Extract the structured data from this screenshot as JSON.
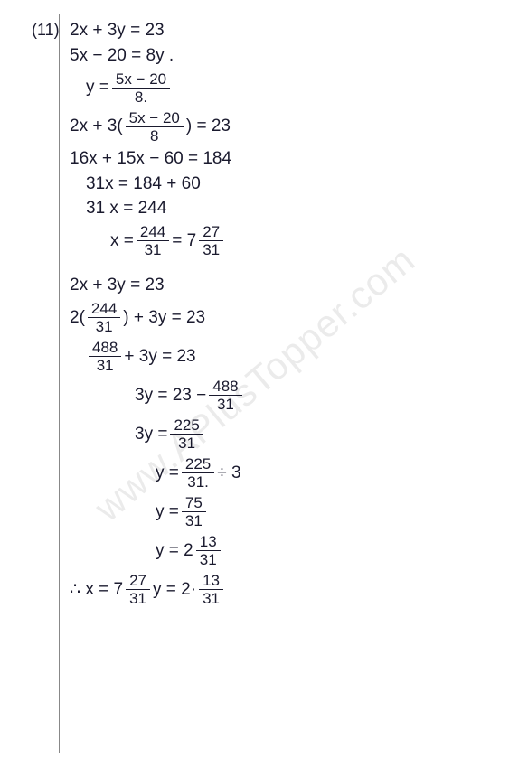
{
  "problem_number": "(11)",
  "watermark": "www.APlusTopper.com",
  "lines": [
    {
      "cls": "",
      "parts": [
        {
          "t": "text",
          "v": "2x + 3y = 23"
        }
      ]
    },
    {
      "cls": "",
      "parts": [
        {
          "t": "text",
          "v": "5x − 20 = 8y ."
        }
      ]
    },
    {
      "cls": "indent1",
      "parts": [
        {
          "t": "text",
          "v": "y = "
        },
        {
          "t": "frac",
          "n": "5x − 20",
          "d": "8."
        }
      ]
    },
    {
      "cls": "",
      "parts": [
        {
          "t": "text",
          "v": "2x + 3"
        },
        {
          "t": "text",
          "v": "("
        },
        {
          "t": "frac",
          "n": "5x − 20",
          "d": "8"
        },
        {
          "t": "text",
          "v": ") = 23"
        }
      ]
    },
    {
      "cls": "",
      "parts": [
        {
          "t": "text",
          "v": "16x + 15x − 60 = 184"
        }
      ]
    },
    {
      "cls": "indent1",
      "parts": [
        {
          "t": "text",
          "v": "31x  =  184 + 60"
        }
      ]
    },
    {
      "cls": "indent1",
      "parts": [
        {
          "t": "text",
          "v": "31 x  =   244"
        }
      ]
    },
    {
      "cls": "indent2",
      "parts": [
        {
          "t": "text",
          "v": "x = "
        },
        {
          "t": "frac",
          "n": "244",
          "d": "31"
        },
        {
          "t": "text",
          "v": "   =  7 "
        },
        {
          "t": "frac",
          "n": "27",
          "d": "31"
        }
      ]
    },
    {
      "cls": "gap",
      "parts": []
    },
    {
      "cls": "",
      "parts": [
        {
          "t": "text",
          "v": "2x + 3y = 23"
        }
      ]
    },
    {
      "cls": "",
      "parts": [
        {
          "t": "text",
          "v": "2("
        },
        {
          "t": "frac",
          "n": "244",
          "d": "31"
        },
        {
          "t": "text",
          "v": ") + 3y = 23"
        }
      ]
    },
    {
      "cls": "indent1",
      "parts": [
        {
          "t": "frac",
          "n": "488",
          "d": "31"
        },
        {
          "t": "text",
          "v": " + 3y = 23"
        }
      ]
    },
    {
      "cls": "indent3",
      "parts": [
        {
          "t": "text",
          "v": "3y = 23 − "
        },
        {
          "t": "frac",
          "n": "488",
          "d": "31"
        }
      ]
    },
    {
      "cls": "indent3",
      "parts": [
        {
          "t": "text",
          "v": "3y = "
        },
        {
          "t": "frac",
          "n": "225",
          "d": "31"
        }
      ]
    },
    {
      "cls": "indent4",
      "parts": [
        {
          "t": "text",
          "v": "y = "
        },
        {
          "t": "frac",
          "n": "225",
          "d": "31."
        },
        {
          "t": "text",
          "v": "  ÷ 3"
        }
      ]
    },
    {
      "cls": "indent4",
      "parts": [
        {
          "t": "text",
          "v": "y = "
        },
        {
          "t": "frac",
          "n": "75",
          "d": "31"
        }
      ]
    },
    {
      "cls": "indent4",
      "parts": [
        {
          "t": "text",
          "v": "y = 2 "
        },
        {
          "t": "frac",
          "n": "13",
          "d": "31"
        }
      ]
    },
    {
      "cls": "final",
      "parts": [
        {
          "t": "text",
          "v": "∴   x =  7 "
        },
        {
          "t": "frac",
          "n": "27",
          "d": "31"
        },
        {
          "t": "text",
          "v": "      y = 2·"
        },
        {
          "t": "frac",
          "n": "13",
          "d": "31"
        }
      ]
    }
  ]
}
